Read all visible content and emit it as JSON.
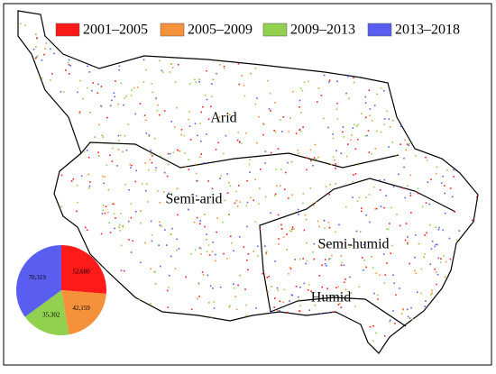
{
  "map": {
    "regions": [
      "Arid",
      "Semi-arid",
      "Semi-humid",
      "Humid"
    ]
  },
  "chart_data": {
    "type": "pie",
    "categories": [
      "2001–2005",
      "2005–2009",
      "2009–2013",
      "2013–2018"
    ],
    "colors": [
      "#ff1a1a",
      "#f5913a",
      "#92d050",
      "#5a5ef0"
    ],
    "values": [
      52680,
      42159,
      35302,
      70319
    ],
    "value_labels": [
      "52,680",
      "42,159",
      "35,302",
      "70,319"
    ]
  }
}
